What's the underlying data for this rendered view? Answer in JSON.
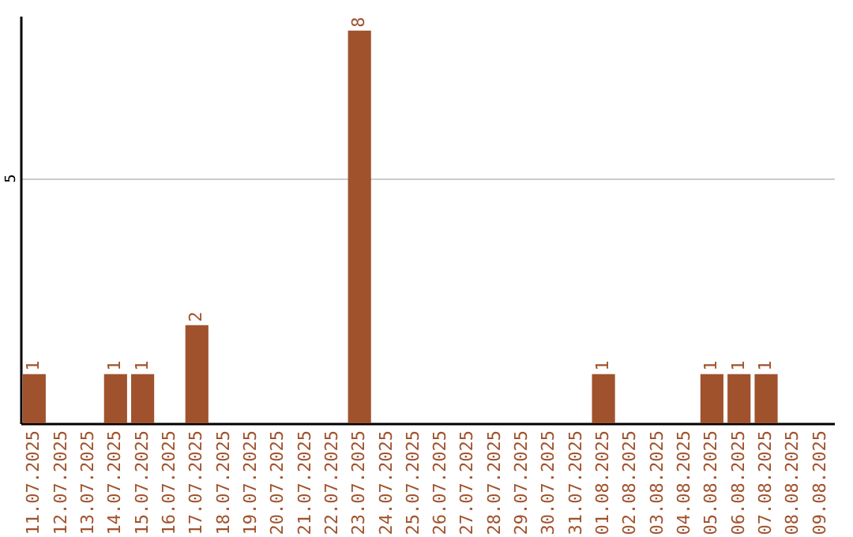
{
  "chart_data": {
    "type": "bar",
    "categories": [
      "11.07.2025",
      "12.07.2025",
      "13.07.2025",
      "14.07.2025",
      "15.07.2025",
      "16.07.2025",
      "17.07.2025",
      "18.07.2025",
      "19.07.2025",
      "20.07.2025",
      "21.07.2025",
      "22.07.2025",
      "23.07.2025",
      "24.07.2025",
      "25.07.2025",
      "26.07.2025",
      "27.07.2025",
      "28.07.2025",
      "29.07.2025",
      "30.07.2025",
      "31.07.2025",
      "01.08.2025",
      "02.08.2025",
      "03.08.2025",
      "04.08.2025",
      "05.08.2025",
      "06.08.2025",
      "07.08.2025",
      "08.08.2025",
      "09.08.2025"
    ],
    "values": [
      1,
      0,
      0,
      1,
      1,
      0,
      2,
      0,
      0,
      0,
      0,
      0,
      8,
      0,
      0,
      0,
      0,
      0,
      0,
      0,
      0,
      1,
      0,
      0,
      0,
      1,
      1,
      1,
      0,
      0
    ],
    "value_labels": [
      "1",
      null,
      null,
      "1",
      "1",
      null,
      "2",
      null,
      null,
      null,
      null,
      null,
      "8",
      null,
      null,
      null,
      null,
      null,
      null,
      null,
      null,
      "1",
      null,
      null,
      null,
      "1",
      "1",
      "1",
      null,
      null
    ],
    "color": "#a0522d",
    "ylim": [
      0,
      8.3
    ],
    "yticks": [
      5
    ],
    "grid": "y"
  }
}
